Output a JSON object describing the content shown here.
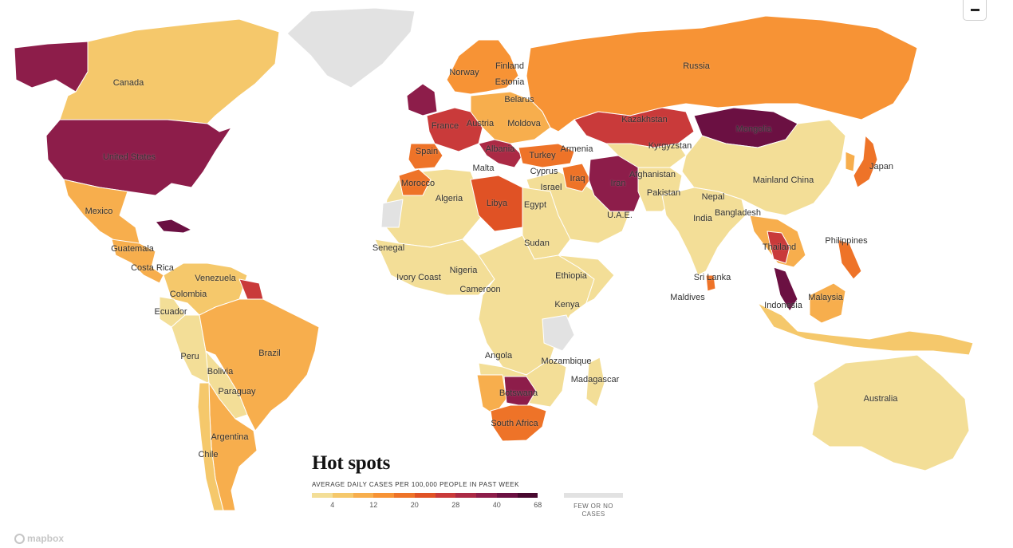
{
  "legend": {
    "title": "Hot spots",
    "subtitle": "AVERAGE DAILY CASES PER 100,000 PEOPLE IN PAST WEEK",
    "ticks": [
      "4",
      "12",
      "20",
      "28",
      "40",
      "68"
    ],
    "no_data_label": "FEW OR NO CASES",
    "scale_colors": [
      "#f3de97",
      "#f5c86b",
      "#f7ae4d",
      "#f79335",
      "#ee7328",
      "#e05225",
      "#c93a3a",
      "#ab2a45",
      "#8d1d4a",
      "#6b1042",
      "#48082f"
    ],
    "no_data_color": "#e2e2e2"
  },
  "branding": {
    "mapbox": "mapbox"
  },
  "controls": {
    "zoom_out_icon": "minus-icon"
  },
  "countries": {
    "canada": "Canada",
    "united_states": "United States",
    "mexico": "Mexico",
    "guatemala": "Guatemala",
    "costa_rica": "Costa Rica",
    "venezuela": "Venezuela",
    "colombia": "Colombia",
    "ecuador": "Ecuador",
    "peru": "Peru",
    "brazil": "Brazil",
    "bolivia": "Bolivia",
    "paraguay": "Paraguay",
    "argentina": "Argentina",
    "chile": "Chile",
    "norway": "Norway",
    "finland": "Finland",
    "estonia": "Estonia",
    "belarus": "Belarus",
    "austria": "Austria",
    "moldova": "Moldova",
    "france": "France",
    "spain": "Spain",
    "albania": "Albania",
    "armenia": "Armenia",
    "malta": "Malta",
    "turkey": "Turkey",
    "cyprus": "Cyprus",
    "israel": "Israel",
    "iraq": "Iraq",
    "iran": "Iran",
    "russia": "Russia",
    "kazakhstan": "Kazakhstan",
    "mongolia": "Mongolia",
    "kyrgyzstan": "Kyrgyzstan",
    "afghanistan": "Afghanistan",
    "pakistan": "Pakistan",
    "mainland_china": "Mainland China",
    "japan": "Japan",
    "nepal": "Nepal",
    "india": "India",
    "bangladesh": "Bangladesh",
    "uae": "U.A.E.",
    "thailand": "Thailand",
    "philippines": "Philippines",
    "sri_lanka": "Sri Lanka",
    "maldives": "Maldives",
    "malaysia": "Malaysia",
    "indonesia": "Indonesia",
    "australia": "Australia",
    "morocco": "Morocco",
    "algeria": "Algeria",
    "libya": "Libya",
    "egypt": "Egypt",
    "senegal": "Senegal",
    "sudan": "Sudan",
    "ivory_coast": "Ivory Coast",
    "nigeria": "Nigeria",
    "cameroon": "Cameroon",
    "ethiopia": "Ethiopia",
    "kenya": "Kenya",
    "angola": "Angola",
    "mozambique": "Mozambique",
    "madagascar": "Madagascar",
    "botswana": "Botswana",
    "south_africa": "South Africa"
  }
}
